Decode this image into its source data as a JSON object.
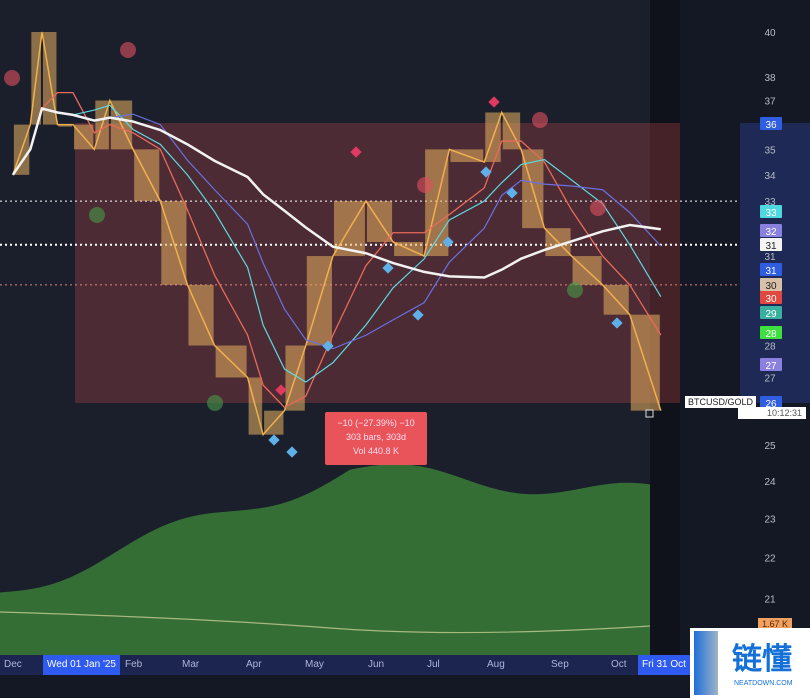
{
  "chart_data": {
    "type": "line",
    "symbol": "BTCUSD/GOLD",
    "scale": "log",
    "ylim": [
      20.5,
      41
    ],
    "y_ticks": [
      40,
      38,
      37,
      35,
      34,
      33,
      31,
      28,
      27,
      25,
      24,
      23,
      22,
      21
    ],
    "x_ticks": [
      "Dec",
      "Wed 01 Jan '25",
      "Feb",
      "Mar",
      "Apr",
      "May",
      "Jun",
      "Jul",
      "Aug",
      "Sep",
      "Oct",
      "Fri 31 Oct"
    ],
    "highlighted_x_ticks": [
      "Wed 01 Jan '25",
      "Fri 31 Oct"
    ],
    "close": [
      {
        "date": "2024-12-01",
        "value": 34
      },
      {
        "date": "2024-12-10",
        "value": 36
      },
      {
        "date": "2024-12-16",
        "value": 40
      },
      {
        "date": "2024-12-24",
        "value": 36
      },
      {
        "date": "2025-01-01",
        "value": 36
      },
      {
        "date": "2025-01-12",
        "value": 35
      },
      {
        "date": "2025-01-20",
        "value": 37
      },
      {
        "date": "2025-02-01",
        "value": 35
      },
      {
        "date": "2025-02-15",
        "value": 33
      },
      {
        "date": "2025-03-01",
        "value": 30
      },
      {
        "date": "2025-03-15",
        "value": 28
      },
      {
        "date": "2025-04-01",
        "value": 27
      },
      {
        "date": "2025-04-09",
        "value": 25.3
      },
      {
        "date": "2025-04-20",
        "value": 26
      },
      {
        "date": "2025-05-01",
        "value": 28
      },
      {
        "date": "2025-05-15",
        "value": 31
      },
      {
        "date": "2025-06-01",
        "value": 33
      },
      {
        "date": "2025-06-15",
        "value": 31.5
      },
      {
        "date": "2025-07-01",
        "value": 31
      },
      {
        "date": "2025-07-14",
        "value": 35
      },
      {
        "date": "2025-08-01",
        "value": 34.5
      },
      {
        "date": "2025-08-10",
        "value": 36.5
      },
      {
        "date": "2025-08-20",
        "value": 35
      },
      {
        "date": "2025-09-01",
        "value": 32
      },
      {
        "date": "2025-09-15",
        "value": 31
      },
      {
        "date": "2025-10-01",
        "value": 30
      },
      {
        "date": "2025-10-15",
        "value": 29
      },
      {
        "date": "2025-10-31",
        "value": 26
      }
    ],
    "price_badges": [
      {
        "value": "36",
        "color": "#2f5ee0"
      },
      {
        "value": "33",
        "color": "#4fd8e0"
      },
      {
        "value": "32",
        "color": "#8a80e0"
      },
      {
        "value": "31",
        "color": "#f4f4f4"
      },
      {
        "value": "31",
        "color": "#2f5ee0"
      },
      {
        "value": "30",
        "color": "#d8c0a8"
      },
      {
        "value": "30",
        "color": "#e04840"
      },
      {
        "value": "29",
        "color": "#3ab0a0"
      },
      {
        "value": "28",
        "color": "#3ee040"
      },
      {
        "value": "27",
        "color": "#8a80e0"
      },
      {
        "value": "26",
        "color": "#2f5ee0"
      }
    ],
    "measure": {
      "line1": "−10 (−27.39%) −10",
      "line2": "303 bars, 303d",
      "line3": "Vol 440.8 K"
    },
    "countdown": "10:12:31",
    "volume_label": "1.67 K",
    "colors": {
      "background": "#141824",
      "range_box": "#c04a4a",
      "volume": "#3f8a3a",
      "ma_white": "#f2f2f2",
      "candle": "#e8b060"
    }
  },
  "watermark": {
    "text_cn": "链懂",
    "text_en": "NEATDOWN.COM"
  }
}
